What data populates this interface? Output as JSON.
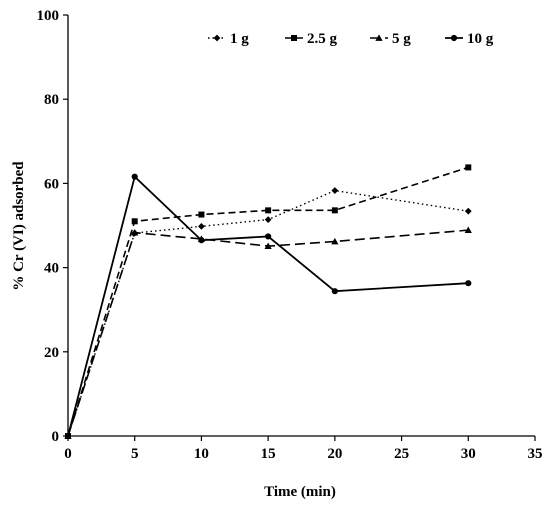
{
  "chart_data": {
    "type": "line",
    "title": "",
    "xlabel": "Time (min)",
    "ylabel": "% Cr (VI) adsorbed",
    "xlim": [
      0,
      35
    ],
    "ylim": [
      0,
      100
    ],
    "xticks": [
      "0",
      "5",
      "10",
      "15",
      "20",
      "25",
      "30",
      "35"
    ],
    "yticks": [
      "0",
      "20",
      "40",
      "60",
      "80",
      "100"
    ],
    "grid": false,
    "legend_position": "top-right",
    "x": [
      0,
      5,
      10,
      15,
      20,
      30
    ],
    "series": [
      {
        "name": "1 g",
        "values": [
          0,
          48.2,
          49.8,
          51.4,
          58.3,
          53.4
        ],
        "line": "dotted",
        "marker": "diamond"
      },
      {
        "name": "2.5 g",
        "values": [
          0,
          51.0,
          52.6,
          53.6,
          53.6,
          63.8
        ],
        "line": "dashed",
        "marker": "square"
      },
      {
        "name": "5 g",
        "values": [
          0,
          48.3,
          46.8,
          45.1,
          46.2,
          48.9
        ],
        "line": "long-dash",
        "marker": "triangle"
      },
      {
        "name": "10 g",
        "values": [
          0,
          61.6,
          46.5,
          47.4,
          34.4,
          36.3
        ],
        "line": "solid",
        "marker": "circle"
      }
    ]
  }
}
